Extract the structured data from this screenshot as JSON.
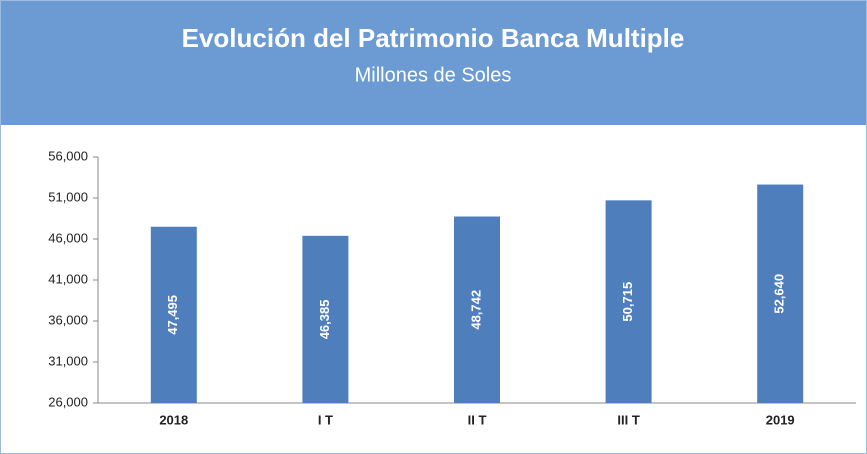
{
  "chart_data": {
    "type": "bar",
    "title": "Evolución del Patrimonio Banca Multiple",
    "subtitle": "Millones de Soles",
    "categories": [
      "2018",
      "I T",
      "II T",
      "III T",
      "2019"
    ],
    "values": [
      47495,
      46385,
      48742,
      50715,
      52640
    ],
    "value_labels": [
      "47,495",
      "46,385",
      "48,742",
      "50,715",
      "52,640"
    ],
    "color": "#4f7ebd",
    "ylim": [
      26000,
      56000
    ],
    "yticks": [
      {
        "value": 26000,
        "label": "26,000"
      },
      {
        "value": 31000,
        "label": "31,000"
      },
      {
        "value": 36000,
        "label": "36,000"
      },
      {
        "value": 41000,
        "label": "41,000"
      },
      {
        "value": 46000,
        "label": "46,000"
      },
      {
        "value": 51000,
        "label": "51,000"
      },
      {
        "value": 56000,
        "label": "56,000"
      }
    ],
    "grid": false
  }
}
